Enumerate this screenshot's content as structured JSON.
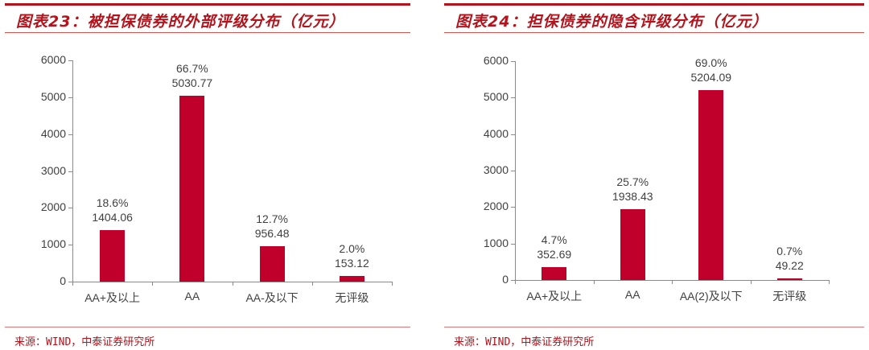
{
  "colors": {
    "bar": "#c0002a",
    "accent": "#b5121b",
    "axis": "#8a8a8a",
    "text": "#404040"
  },
  "chart_data": [
    {
      "type": "bar",
      "title": "图表23：被担保债券的外部评级分布（亿元）",
      "categories": [
        "AA+及以上",
        "AA",
        "AA-及以下",
        "无评级"
      ],
      "values": [
        1404.06,
        5030.77,
        956.48,
        153.12
      ],
      "percent_labels": [
        "18.6%",
        "66.7%",
        "12.7%",
        "2.0%"
      ],
      "value_labels": [
        "1404.06",
        "5030.77",
        "956.48",
        "153.12"
      ],
      "yticks": [
        "0",
        "1000",
        "2000",
        "3000",
        "4000",
        "5000",
        "6000"
      ],
      "ylim": [
        0,
        6000
      ],
      "xlabel": "",
      "ylabel": "",
      "grid": false,
      "legend": false,
      "source": "来源：WIND，中泰证券研究所"
    },
    {
      "type": "bar",
      "title": "图表24：担保债券的隐含评级分布（亿元）",
      "categories": [
        "AA+及以上",
        "AA",
        "AA(2)及以下",
        "无评级"
      ],
      "values": [
        352.69,
        1938.43,
        5204.09,
        49.22
      ],
      "percent_labels": [
        "4.7%",
        "25.7%",
        "69.0%",
        "0.7%"
      ],
      "value_labels": [
        "352.69",
        "1938.43",
        "5204.09",
        "49.22"
      ],
      "yticks": [
        "0",
        "1000",
        "2000",
        "3000",
        "4000",
        "5000",
        "6000"
      ],
      "ylim": [
        0,
        6000
      ],
      "xlabel": "",
      "ylabel": "",
      "grid": false,
      "legend": false,
      "source": "来源：WIND，中泰证券研究所"
    }
  ]
}
